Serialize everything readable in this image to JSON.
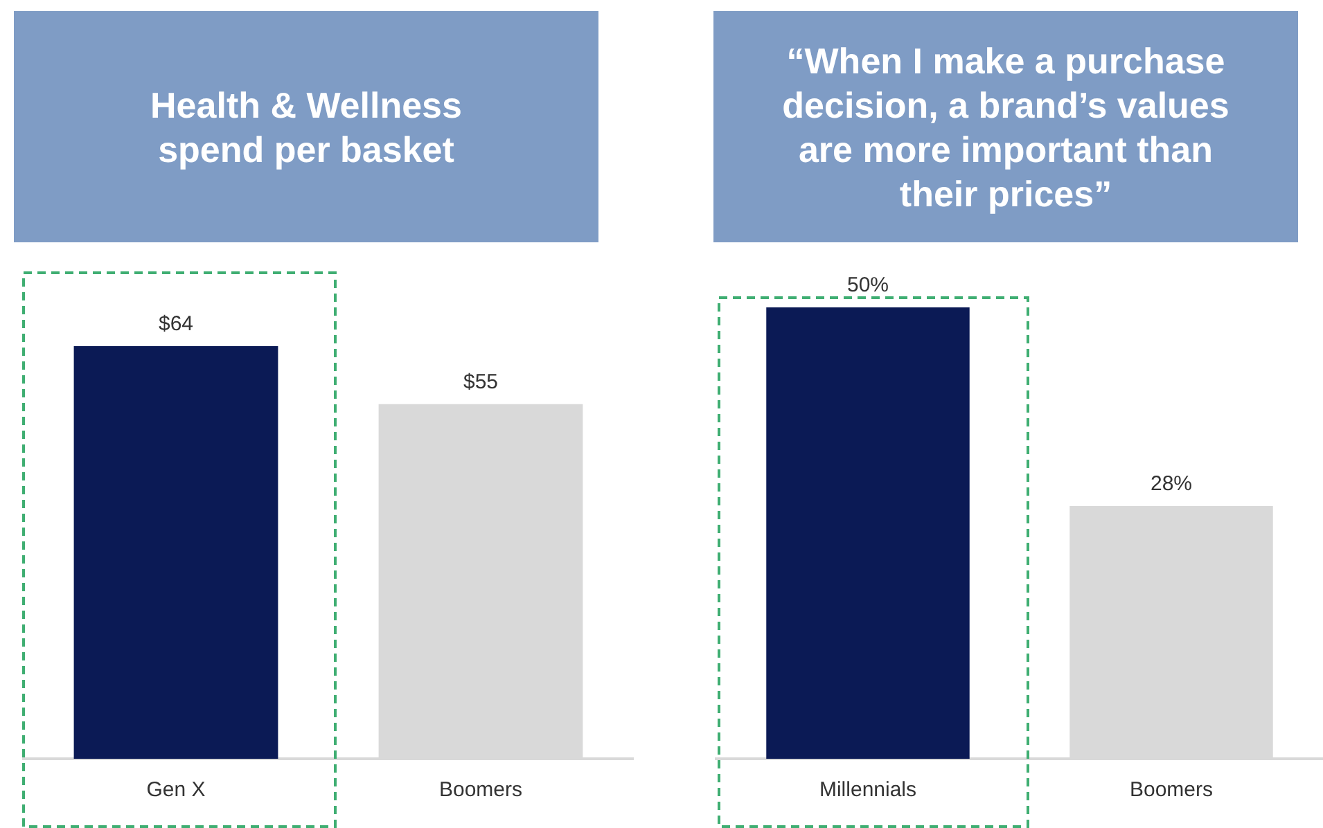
{
  "chart_data": [
    {
      "type": "bar",
      "title": "Health & Wellness spend per basket",
      "categories": [
        "Gen X",
        "Boomers"
      ],
      "values": [
        64,
        55
      ],
      "colors": [
        "#0b1a55",
        "#d9d9d9"
      ],
      "value_labels": [
        "$64",
        "$55"
      ],
      "tick_labels": "x",
      "grid": false,
      "legend": false
    },
    {
      "type": "bar",
      "title": "“When I make a purchase decision, a brand’s values are more important than their prices”",
      "categories": [
        "Millennials",
        "Boomers"
      ],
      "values": [
        50,
        28
      ],
      "colors": [
        "#0b1a55",
        "#d9d9d9"
      ],
      "value_labels": [
        "50%",
        "28%"
      ],
      "tick_labels": "x",
      "grid": false,
      "legend": false
    }
  ]
}
